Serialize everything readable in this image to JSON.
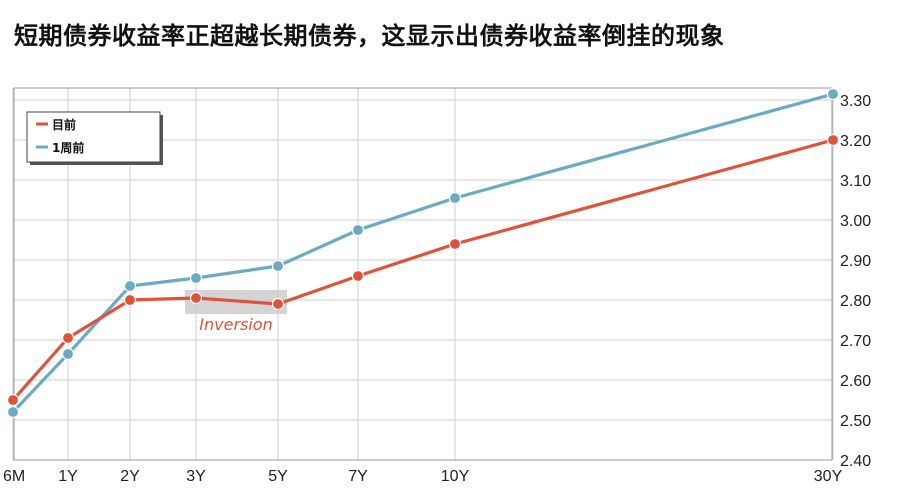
{
  "title": "短期债券收益率正超越长期债券，这显示出债券收益率倒挂的现象",
  "chart_data": {
    "type": "line",
    "categories": [
      "6M",
      "1Y",
      "2Y",
      "3Y",
      "5Y",
      "7Y",
      "10Y",
      "30Y"
    ],
    "series": [
      {
        "name": "目前",
        "color": "#e0533b",
        "values": [
          2.55,
          2.705,
          2.8,
          2.805,
          2.79,
          2.86,
          2.94,
          3.2
        ]
      },
      {
        "name": "1周前",
        "color": "#6aaac5",
        "values": [
          2.52,
          2.665,
          2.835,
          2.855,
          2.885,
          2.975,
          3.055,
          3.315
        ]
      }
    ],
    "yticks": [
      "3.30",
      "3.20",
      "3.10",
      "3.00",
      "2.90",
      "2.80",
      "2.70",
      "2.60",
      "2.50",
      "2.40"
    ],
    "ylim": [
      2.4,
      3.33
    ],
    "grid": true,
    "legend_position": "top-left",
    "annotation": {
      "text": "Inversion",
      "categories": [
        "3Y",
        "5Y"
      ]
    }
  }
}
